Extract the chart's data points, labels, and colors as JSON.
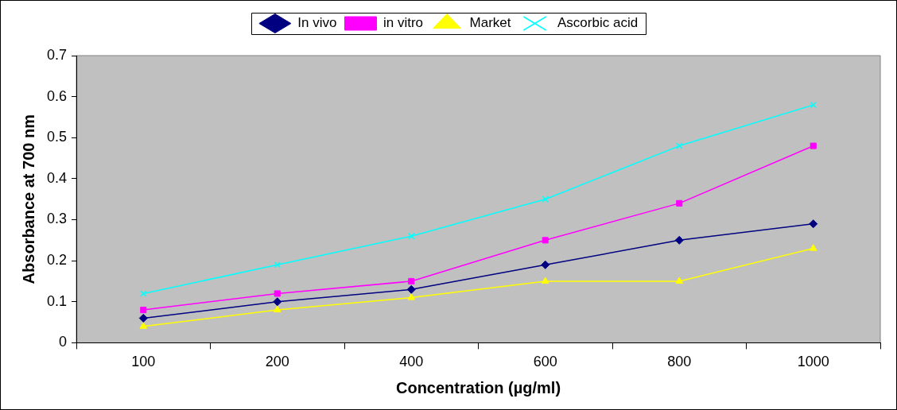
{
  "chart_data": {
    "type": "line",
    "xlabel": "Concentration (µg/ml)",
    "ylabel": "Absorbance at 700 nm",
    "categories": [
      "100",
      "200",
      "400",
      "600",
      "800",
      "1000"
    ],
    "series": [
      {
        "name": "In vivo",
        "color": "#000080",
        "marker": "diamond",
        "values": [
          0.06,
          0.1,
          0.13,
          0.19,
          0.25,
          0.29
        ]
      },
      {
        "name": "in vitro",
        "color": "#ff00ff",
        "marker": "square",
        "values": [
          0.08,
          0.12,
          0.15,
          0.25,
          0.34,
          0.48
        ]
      },
      {
        "name": "Market",
        "color": "#ffff00",
        "marker": "triangle",
        "values": [
          0.04,
          0.08,
          0.11,
          0.15,
          0.15,
          0.23
        ]
      },
      {
        "name": "Ascorbic acid",
        "color": "#00ffff",
        "marker": "cross",
        "values": [
          0.12,
          0.19,
          0.26,
          0.35,
          0.48,
          0.58
        ]
      }
    ],
    "ylim": [
      0,
      0.7
    ],
    "yticks": [
      0,
      0.1,
      0.2,
      0.3,
      0.4,
      0.5,
      0.6,
      0.7
    ],
    "legend": "top",
    "grid": false
  }
}
